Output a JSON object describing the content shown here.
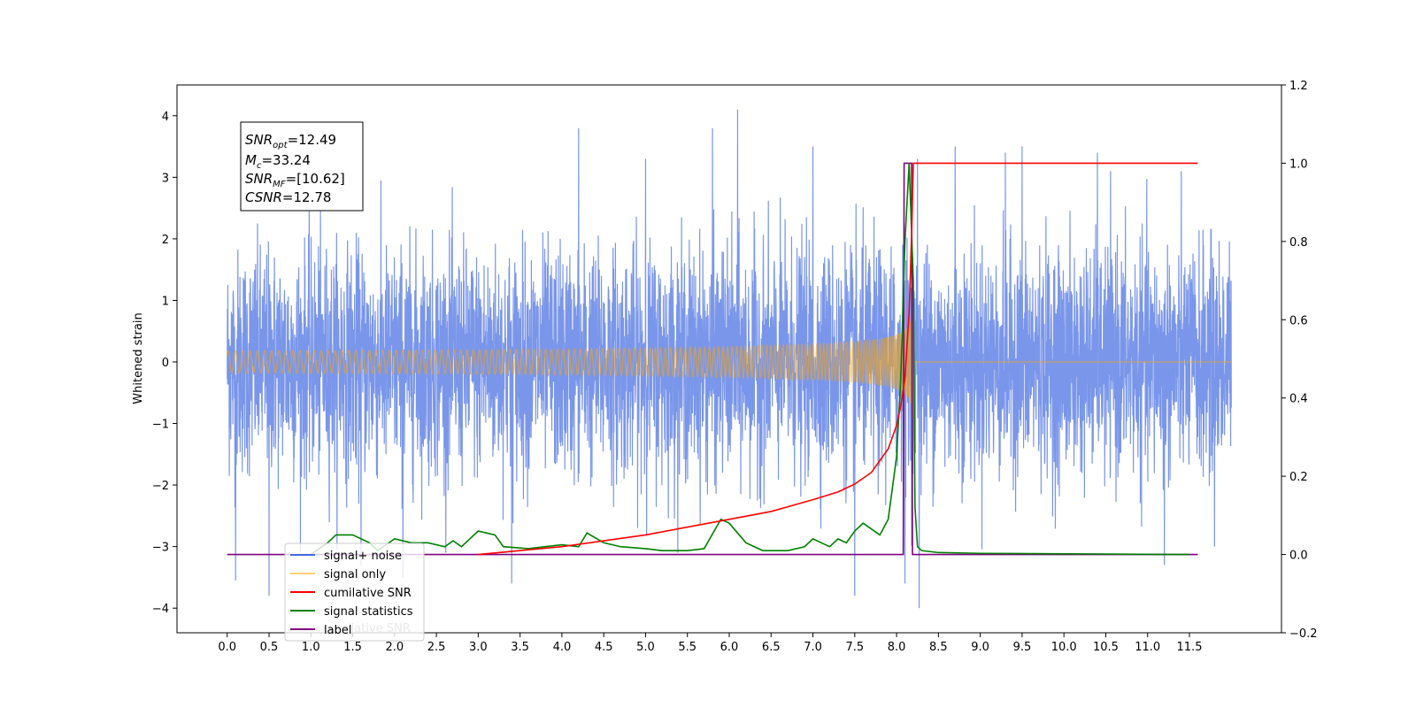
{
  "chart_data": {
    "type": "line",
    "ylabel": "Whitened strain",
    "xlim": [
      -0.6,
      12.6
    ],
    "ylim": [
      -4.4,
      4.5
    ],
    "y2lim": [
      -0.2,
      1.2
    ],
    "x_ticks": [
      "0.0",
      "0.5",
      "1.0",
      "1.5",
      "2.0",
      "2.5",
      "3.0",
      "3.5",
      "4.0",
      "4.5",
      "5.0",
      "5.5",
      "6.0",
      "6.5",
      "7.0",
      "7.5",
      "8.0",
      "8.5",
      "9.0",
      "9.5",
      "10.0",
      "10.5",
      "11.0",
      "11.5"
    ],
    "y_ticks": [
      "4",
      "3",
      "2",
      "1",
      "0",
      "−1",
      "−2",
      "−3",
      "−4"
    ],
    "y2_ticks": [
      "1.2",
      "1.0",
      "0.8",
      "0.6",
      "0.4",
      "0.2",
      "0.0",
      "−0.2"
    ],
    "grid": false,
    "legend_position": "lower-left",
    "annotation": {
      "snr_opt": "=12.49",
      "mc": "=33.24",
      "snr_mf": "=[10.62]",
      "csnr": "=12.78"
    },
    "series": [
      {
        "name": "signal+ noise",
        "color": "#4169e1",
        "axis": "left",
        "description": "white noise, std ≈ 1, over 0–12 s",
        "x_range": [
          0,
          12
        ],
        "std": 1.0,
        "spikes": [
          [
            0.1,
            -3.55
          ],
          [
            0.5,
            -3.8
          ],
          [
            1.6,
            -3.3
          ],
          [
            2.1,
            -3.5
          ],
          [
            3.4,
            -3.6
          ],
          [
            4.2,
            3.8
          ],
          [
            5.0,
            3.3
          ],
          [
            5.8,
            3.8
          ],
          [
            6.1,
            4.1
          ],
          [
            7.0,
            3.5
          ],
          [
            7.5,
            -3.8
          ],
          [
            8.1,
            -3.6
          ],
          [
            8.27,
            -4.0
          ],
          [
            8.25,
            3.3
          ],
          [
            8.7,
            3.5
          ],
          [
            9.3,
            3.4
          ],
          [
            9.5,
            3.5
          ],
          [
            10.4,
            3.4
          ],
          [
            11.2,
            -3.3
          ],
          [
            11.8,
            -3.0
          ]
        ]
      },
      {
        "name": "signal only",
        "color": "#ffa500",
        "axis": "left",
        "description": "chirp that merges near t ≈ 8.2 s",
        "x_range": [
          0,
          12
        ],
        "merger_time": 8.2,
        "peak_amplitude": 0.6
      },
      {
        "name": "cumilative SNR",
        "color": "#ff0000",
        "axis": "right",
        "points": [
          [
            3.0,
            0.0
          ],
          [
            4.0,
            0.02
          ],
          [
            5.0,
            0.05
          ],
          [
            6.0,
            0.09
          ],
          [
            6.5,
            0.11
          ],
          [
            7.0,
            0.14
          ],
          [
            7.3,
            0.16
          ],
          [
            7.5,
            0.18
          ],
          [
            7.7,
            0.21
          ],
          [
            7.9,
            0.27
          ],
          [
            8.0,
            0.33
          ],
          [
            8.05,
            0.38
          ],
          [
            8.1,
            0.45
          ],
          [
            8.15,
            0.62
          ],
          [
            8.18,
            0.82
          ],
          [
            8.2,
            1.0
          ],
          [
            11.6,
            1.0
          ]
        ]
      },
      {
        "name": "signal statistics",
        "color": "#008000",
        "axis": "right",
        "points": [
          [
            1.0,
            0.0
          ],
          [
            1.2,
            0.03
          ],
          [
            1.3,
            0.05
          ],
          [
            1.5,
            0.05
          ],
          [
            1.6,
            0.04
          ],
          [
            1.7,
            0.03
          ],
          [
            1.8,
            0.01
          ],
          [
            2.0,
            0.04
          ],
          [
            2.2,
            0.03
          ],
          [
            2.4,
            0.03
          ],
          [
            2.6,
            0.02
          ],
          [
            2.7,
            0.035
          ],
          [
            2.8,
            0.02
          ],
          [
            3.0,
            0.06
          ],
          [
            3.2,
            0.05
          ],
          [
            3.3,
            0.02
          ],
          [
            3.6,
            0.015
          ],
          [
            3.8,
            0.02
          ],
          [
            4.0,
            0.025
          ],
          [
            4.2,
            0.02
          ],
          [
            4.3,
            0.055
          ],
          [
            4.5,
            0.03
          ],
          [
            4.7,
            0.02
          ],
          [
            5.0,
            0.015
          ],
          [
            5.2,
            0.01
          ],
          [
            5.5,
            0.01
          ],
          [
            5.7,
            0.015
          ],
          [
            5.9,
            0.09
          ],
          [
            6.0,
            0.08
          ],
          [
            6.2,
            0.03
          ],
          [
            6.4,
            0.01
          ],
          [
            6.7,
            0.01
          ],
          [
            6.9,
            0.02
          ],
          [
            7.0,
            0.04
          ],
          [
            7.1,
            0.03
          ],
          [
            7.2,
            0.02
          ],
          [
            7.3,
            0.04
          ],
          [
            7.4,
            0.03
          ],
          [
            7.5,
            0.06
          ],
          [
            7.6,
            0.08
          ],
          [
            7.8,
            0.05
          ],
          [
            7.9,
            0.09
          ],
          [
            8.0,
            0.25
          ],
          [
            8.05,
            0.45
          ],
          [
            8.1,
            0.8
          ],
          [
            8.15,
            1.0
          ],
          [
            8.2,
            0.7
          ],
          [
            8.22,
            0.12
          ],
          [
            8.25,
            0.02
          ],
          [
            8.3,
            0.01
          ],
          [
            8.5,
            0.005
          ],
          [
            9.0,
            0.003
          ],
          [
            11.5,
            0.0
          ]
        ]
      },
      {
        "name": "label",
        "color": "#800080",
        "axis": "right",
        "points": [
          [
            0.0,
            0.0
          ],
          [
            8.08,
            0.0
          ],
          [
            8.09,
            1.0
          ],
          [
            8.18,
            1.0
          ],
          [
            8.19,
            0.0
          ],
          [
            11.6,
            0.0
          ]
        ]
      }
    ],
    "legend_hidden_text": "cumilative SNR"
  },
  "legend": {
    "items": [
      {
        "label": "signal+ noise",
        "color": "#4169e1"
      },
      {
        "label": "signal only",
        "color": "#ffa500"
      },
      {
        "label": "cumilative SNR",
        "color": "#ff0000"
      },
      {
        "label": "signal statistics",
        "color": "#008000"
      },
      {
        "label": "label",
        "color": "#800080"
      }
    ]
  }
}
